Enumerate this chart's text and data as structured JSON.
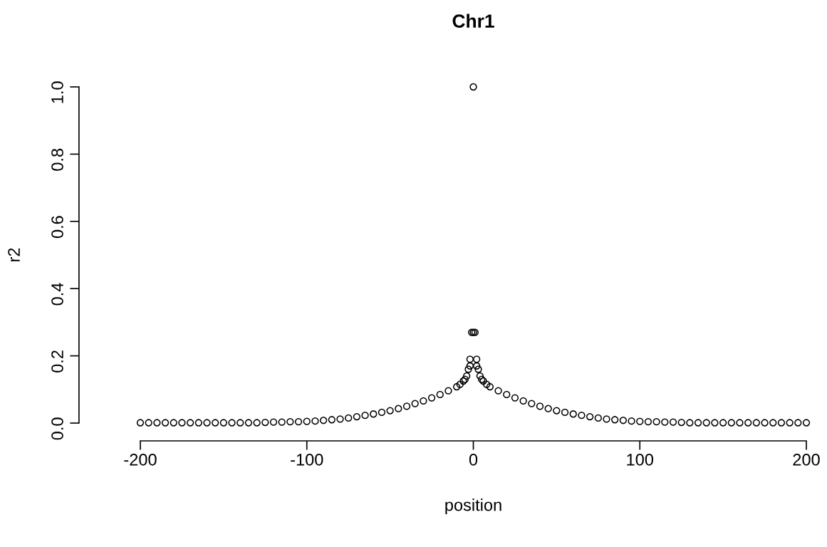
{
  "chart_data": {
    "type": "scatter",
    "title": "Chr1",
    "xlabel": "position",
    "ylabel": "r2",
    "xlim": [
      -200,
      200
    ],
    "ylim": [
      0,
      1
    ],
    "xticks": [
      -200,
      -100,
      0,
      100,
      200
    ],
    "yticks": [
      {
        "value": 0,
        "label": "0.0"
      },
      {
        "value": 0.2,
        "label": "0.2"
      },
      {
        "value": 0.4,
        "label": "0.4"
      },
      {
        "value": 0.6,
        "label": "0.6"
      },
      {
        "value": 0.8,
        "label": "0.8"
      },
      {
        "value": 1,
        "label": "1.0"
      }
    ],
    "grid": false,
    "marker": "circle",
    "series": [
      {
        "color": "#000000",
        "x": [
          -200,
          -195,
          -190,
          -185,
          -180,
          -175,
          -170,
          -165,
          -160,
          -155,
          -150,
          -145,
          -140,
          -135,
          -130,
          -125,
          -120,
          -115,
          -110,
          -105,
          -100,
          -95,
          -90,
          -85,
          -80,
          -75,
          -70,
          -65,
          -60,
          -55,
          -50,
          -45,
          -40,
          -35,
          -30,
          -25,
          -20,
          -15,
          -10,
          -8,
          -6,
          -5,
          -4,
          -3,
          -2,
          -1,
          0,
          1,
          2,
          3,
          4,
          5,
          6,
          8,
          10,
          15,
          20,
          25,
          30,
          35,
          40,
          45,
          50,
          55,
          60,
          65,
          70,
          75,
          80,
          85,
          90,
          95,
          100,
          105,
          110,
          115,
          120,
          125,
          130,
          135,
          140,
          145,
          150,
          155,
          160,
          165,
          170,
          175,
          180,
          185,
          190,
          195,
          200,
          -2,
          2,
          0
        ],
        "values": [
          0.001,
          0.001,
          0.001,
          0.001,
          0.001,
          0.001,
          0.001,
          0.001,
          0.001,
          0.001,
          0.001,
          0.001,
          0.001,
          0.001,
          0.001,
          0.002,
          0.003,
          0.003,
          0.004,
          0.004,
          0.005,
          0.006,
          0.008,
          0.01,
          0.012,
          0.015,
          0.019,
          0.023,
          0.027,
          0.032,
          0.037,
          0.043,
          0.05,
          0.058,
          0.066,
          0.075,
          0.085,
          0.096,
          0.108,
          0.115,
          0.125,
          0.13,
          0.14,
          0.16,
          0.19,
          0.27,
          0.27,
          0.27,
          0.19,
          0.16,
          0.14,
          0.13,
          0.125,
          0.115,
          0.108,
          0.096,
          0.085,
          0.075,
          0.066,
          0.058,
          0.05,
          0.043,
          0.037,
          0.032,
          0.027,
          0.023,
          0.019,
          0.015,
          0.012,
          0.01,
          0.008,
          0.006,
          0.005,
          0.004,
          0.004,
          0.003,
          0.003,
          0.002,
          0.001,
          0.001,
          0.001,
          0.001,
          0.001,
          0.001,
          0.001,
          0.001,
          0.001,
          0.001,
          0.001,
          0.001,
          0.001,
          0.001,
          0.001,
          0.17,
          0.17,
          1.0
        ]
      }
    ]
  }
}
